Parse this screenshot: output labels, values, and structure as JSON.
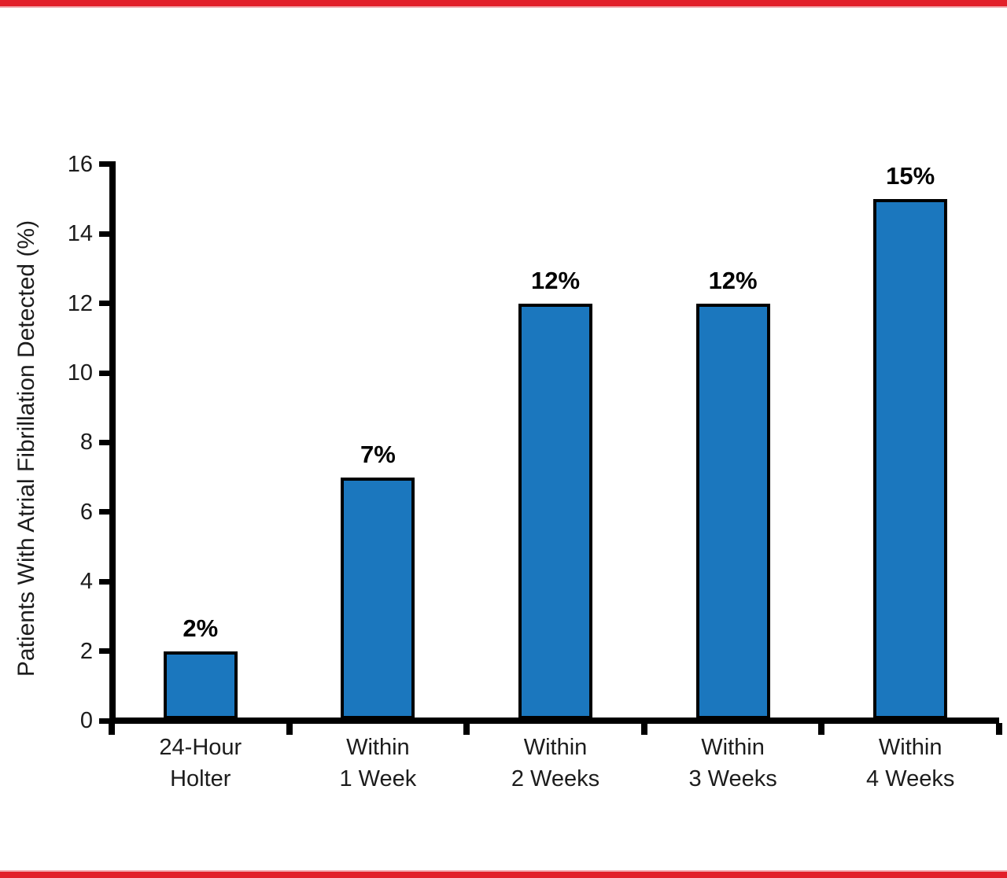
{
  "page": {
    "background": "#ffffff",
    "top_rule_color": "#E2202A",
    "top_rule_edge_color": "#F2AFB3",
    "bottom_rule_color": "#E2202A",
    "bottom_rule_edge_color": "#F2AFB3"
  },
  "chart_data": {
    "type": "bar",
    "title": "",
    "xlabel": "",
    "ylabel": "Patients With Atrial Fibrillation Detected (%)",
    "categories": [
      [
        "24-Hour",
        "Holter"
      ],
      [
        "Within",
        "1 Week"
      ],
      [
        "Within",
        "2 Weeks"
      ],
      [
        "Within",
        "3 Weeks"
      ],
      [
        "Within",
        "4 Weeks"
      ]
    ],
    "values": [
      2,
      7,
      12,
      12,
      15
    ],
    "value_labels": [
      "2%",
      "7%",
      "12%",
      "12%",
      "15%"
    ],
    "ylim": [
      0,
      16
    ],
    "yticks": [
      0,
      2,
      4,
      6,
      8,
      10,
      12,
      14,
      16
    ],
    "grid": false,
    "legend": null,
    "bar_color": "#1B77BE",
    "bar_border_color": "#000000",
    "axis_color": "#000000"
  }
}
